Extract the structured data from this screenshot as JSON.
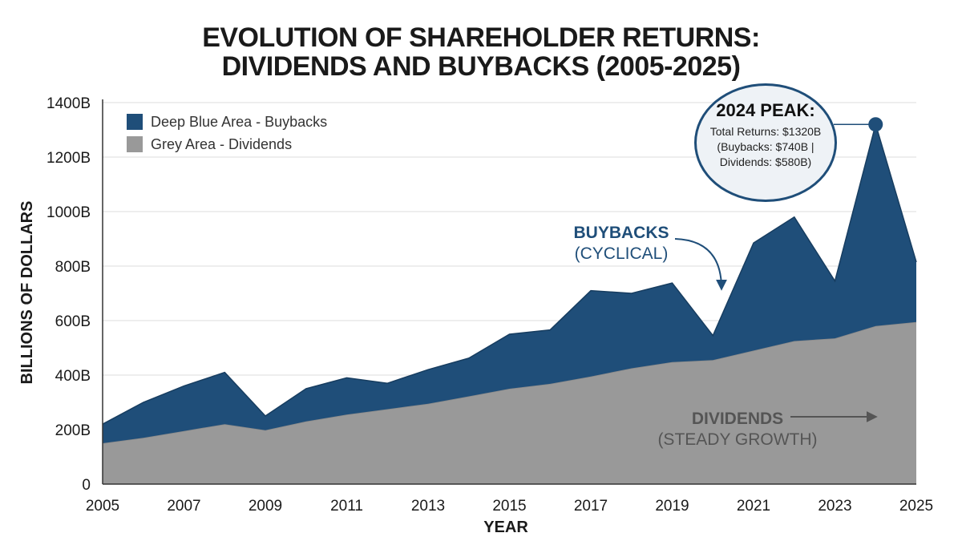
{
  "chart_data": {
    "type": "area",
    "title_line1": "EVOLUTION OF SHAREHOLDER RETURNS:",
    "title_line2": "DIVIDENDS AND BUYBACKS (2005-2025)",
    "xlabel": "YEAR",
    "ylabel": "BILLIONS OF DOLLARS",
    "ylim": [
      0,
      1400
    ],
    "xlim": [
      2005,
      2025
    ],
    "y_ticks": [
      "0",
      "200B",
      "400B",
      "600B",
      "800B",
      "1000B",
      "1200B",
      "1400B"
    ],
    "x_ticks": [
      "2005",
      "2007",
      "2009",
      "2011",
      "2013",
      "2015",
      "2017",
      "2019",
      "2021",
      "2023",
      "2025"
    ],
    "grid": true,
    "stacked": true,
    "x": [
      2005,
      2006,
      2007,
      2008,
      2009,
      2010,
      2011,
      2012,
      2013,
      2014,
      2015,
      2016,
      2017,
      2018,
      2019,
      2020,
      2021,
      2022,
      2023,
      2024,
      2025
    ],
    "series": [
      {
        "name": "Grey Area - Dividends",
        "color": "#999999",
        "values": [
          150,
          170,
          195,
          220,
          198,
          230,
          255,
          275,
          295,
          322,
          350,
          368,
          395,
          425,
          448,
          455,
          490,
          525,
          535,
          580,
          595
        ]
      },
      {
        "name": "Deep Blue Area - Buybacks",
        "color": "#1f4e79",
        "values": [
          70,
          130,
          165,
          190,
          52,
          120,
          135,
          95,
          125,
          140,
          200,
          198,
          315,
          275,
          290,
          90,
          395,
          455,
          210,
          740,
          220
        ]
      }
    ],
    "legend_position": "top-left",
    "annotations": {
      "buybacks_line1": "BUYBACKS",
      "buybacks_line2": "(CYCLICAL)",
      "dividends_line1": "DIVIDENDS",
      "dividends_line2": "(STEADY GROWTH)",
      "peak_header": "2024 PEAK:",
      "peak_line1": "Total Returns: $1320B",
      "peak_line2": "(Buybacks: $740B |",
      "peak_line3": "Dividends: $580B)",
      "peak_year": 2024,
      "peak_total": 1320
    }
  }
}
